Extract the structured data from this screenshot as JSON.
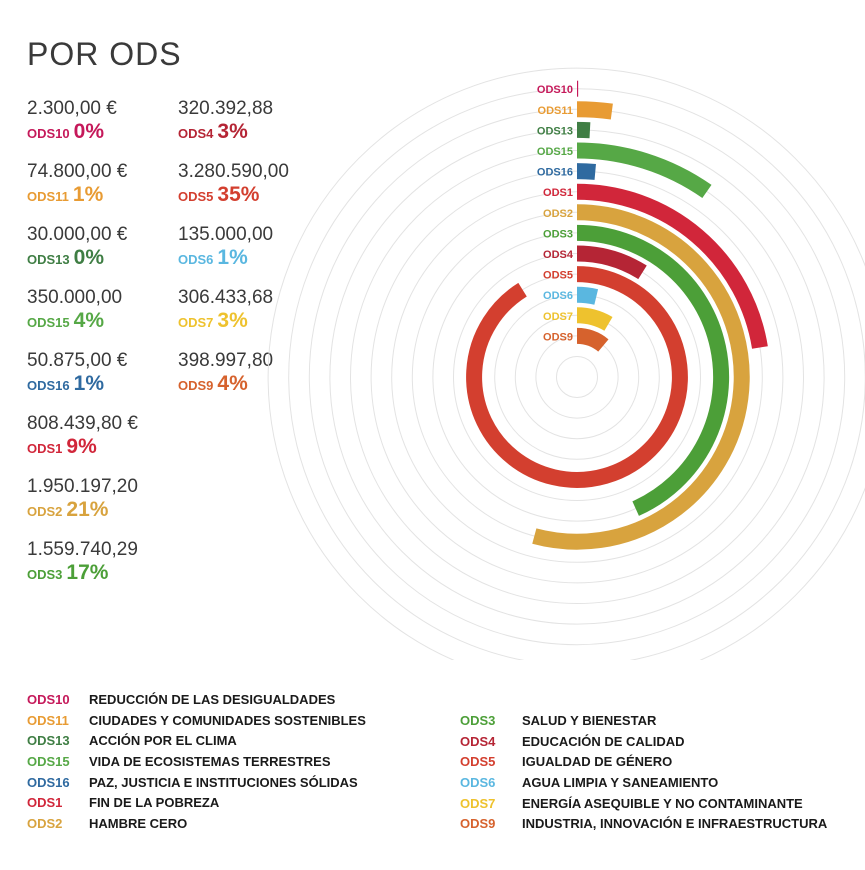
{
  "title": "POR ODS",
  "colors": {
    "ODS10": "#c5195a",
    "ODS11": "#e89b33",
    "ODS13": "#3f7e44",
    "ODS15": "#56a846",
    "ODS16": "#2f6aa0",
    "ODS1": "#d1263a",
    "ODS2": "#d8a33e",
    "ODS3": "#4c9f38",
    "ODS4": "#b52535",
    "ODS5": "#d33f2f",
    "ODS6": "#5ab7e0",
    "ODS7": "#eec22e",
    "ODS9": "#d6622d"
  },
  "stats_left": [
    {
      "code": "ODS10",
      "amount": "2.300,00 €",
      "pct": "0%"
    },
    {
      "code": "ODS11",
      "amount": "74.800,00 €",
      "pct": "1%"
    },
    {
      "code": "ODS13",
      "amount": "30.000,00 €",
      "pct": "0%"
    },
    {
      "code": "ODS15",
      "amount": "350.000,00",
      "pct": "4%"
    },
    {
      "code": "ODS16",
      "amount": "50.875,00 €",
      "pct": "1%"
    },
    {
      "code": "ODS1",
      "amount": "808.439,80 €",
      "pct": "9%"
    },
    {
      "code": "ODS2",
      "amount": "1.950.197,20",
      "pct": "21%"
    },
    {
      "code": "ODS3",
      "amount": "1.559.740,29",
      "pct": "17%"
    }
  ],
  "stats_right": [
    {
      "code": "ODS4",
      "amount": "320.392,88",
      "pct": "3%"
    },
    {
      "code": "ODS5",
      "amount": "3.280.590,00",
      "pct": "35%"
    },
    {
      "code": "ODS6",
      "amount": "135.000,00",
      "pct": "1%"
    },
    {
      "code": "ODS7",
      "amount": "306.433,68",
      "pct": "3%"
    },
    {
      "code": "ODS9",
      "amount": "398.997,80",
      "pct": "4%"
    }
  ],
  "chart_data": {
    "type": "radial-bar",
    "categories": [
      "ODS10",
      "ODS11",
      "ODS13",
      "ODS15",
      "ODS16",
      "ODS1",
      "ODS2",
      "ODS3",
      "ODS4",
      "ODS5",
      "ODS6",
      "ODS7",
      "ODS9"
    ],
    "values": [
      2300.0,
      74800.0,
      30000.0,
      350000.0,
      50875.0,
      808439.8,
      1950197.2,
      1559740.29,
      320392.88,
      3280590.0,
      135000.0,
      306433.68,
      398997.8
    ],
    "max_value": 3600000,
    "full_scale_degrees": 360,
    "grid": true
  },
  "legend_left": [
    {
      "code": "ODS10",
      "name": "REDUCCIÓN DE LAS DESIGUALDADES"
    },
    {
      "code": "ODS11",
      "name": "CIUDADES Y COMUNIDADES SOSTENIBLES"
    },
    {
      "code": "ODS13",
      "name": "ACCIÓN POR EL CLIMA"
    },
    {
      "code": "ODS15",
      "name": "VIDA DE ECOSISTEMAS TERRESTRES"
    },
    {
      "code": "ODS16",
      "name": "PAZ, JUSTICIA E INSTITUCIONES SÓLIDAS"
    },
    {
      "code": "ODS1",
      "name": "FIN DE LA POBREZA"
    },
    {
      "code": "ODS2",
      "name": "HAMBRE CERO"
    }
  ],
  "legend_right": [
    {
      "code": "ODS3",
      "name": "SALUD Y BIENESTAR"
    },
    {
      "code": "ODS4",
      "name": "EDUCACIÓN DE CALIDAD"
    },
    {
      "code": "ODS5",
      "name": "IGUALDAD DE GÉNERO"
    },
    {
      "code": "ODS6",
      "name": "AGUA LIMPIA Y SANEAMIENTO"
    },
    {
      "code": "ODS7",
      "name": "ENERGÍA ASEQUIBLE Y NO CONTAMINANTE"
    },
    {
      "code": "ODS9",
      "name": "INDUSTRIA, INNOVACIÓN E INFRAESTRUCTURA"
    }
  ]
}
